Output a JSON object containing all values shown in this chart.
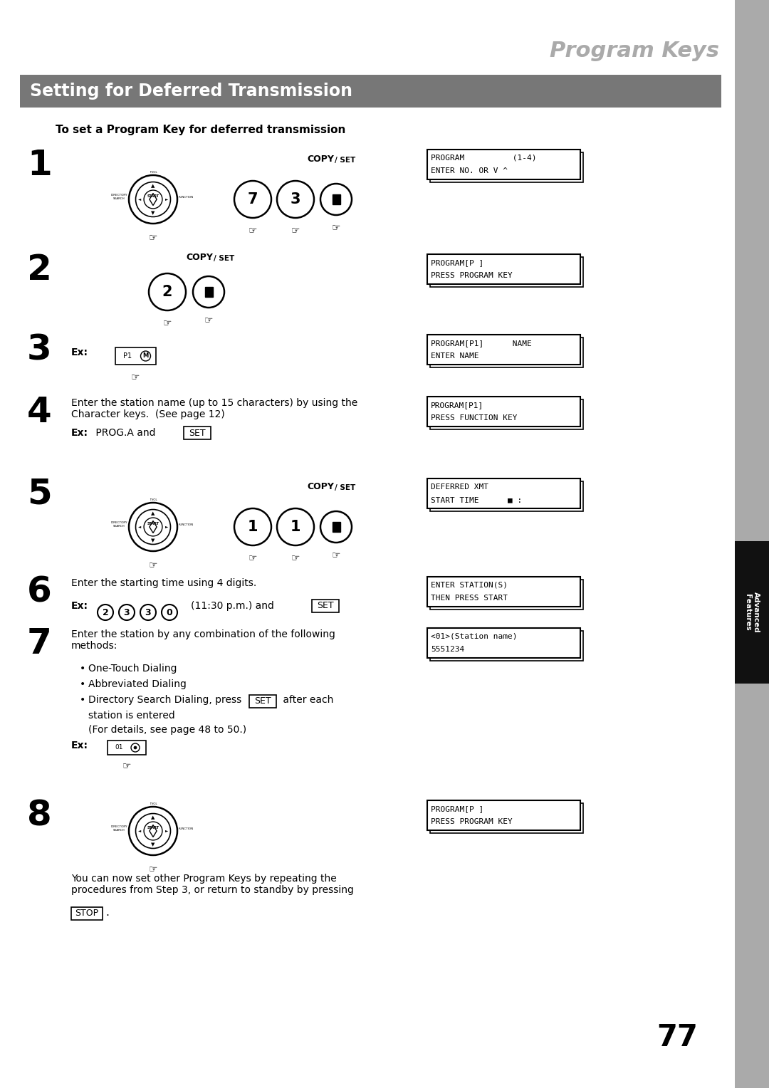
{
  "page_title": "Program Keys",
  "section_title": "Setting for Deferred Transmission",
  "subtitle": "To set a Program Key for deferred transmission",
  "bg_color": "#ffffff",
  "section_bg": "#777777",
  "section_text_color": "#ffffff",
  "title_color": "#aaaaaa",
  "sidebar_color": "#999999",
  "sidebar_dark": "#222222",
  "tab_text": "Advanced\nFeatures",
  "page_number": "77",
  "lcd_boxes": [
    {
      "line1": "PROGRAM          (1-4)",
      "line2": "ENTER NO. OR V ^"
    },
    {
      "line1": "PROGRAM[P ]",
      "line2": "PRESS PROGRAM KEY"
    },
    {
      "line1": "PROGRAM[P1]      NAME",
      "line2": "ENTER NAME"
    },
    {
      "line1": "PROGRAM[P1]",
      "line2": "PRESS FUNCTION KEY"
    },
    {
      "line1": "DEFERRED XMT",
      "line2": "START TIME      ■ :"
    },
    {
      "line1": "ENTER STATION(S)",
      "line2": "THEN PRESS START"
    },
    {
      "line1": "<01>(Station name)",
      "line2": "5551234"
    },
    {
      "line1": "PROGRAM[P ]",
      "line2": "PRESS PROGRAM KEY"
    }
  ]
}
